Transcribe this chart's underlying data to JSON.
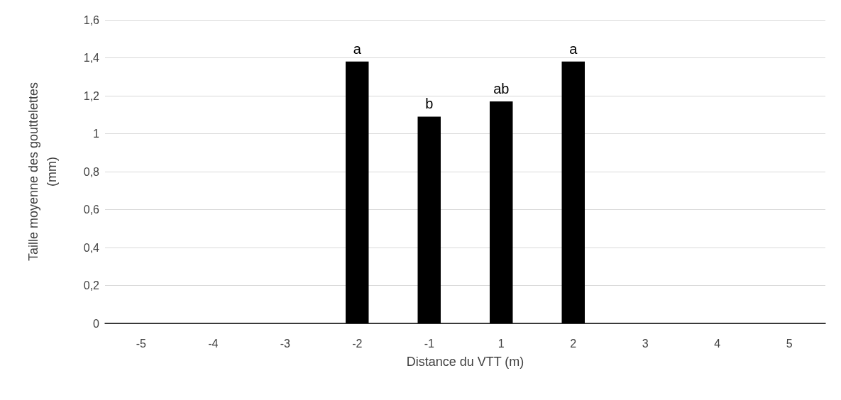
{
  "chart_data": {
    "type": "bar",
    "xlabel": "Distance du VTT (m)",
    "ylabel": "Taille moyenne des gouttelettes\n(mm)",
    "categories": [
      "-5",
      "-4",
      "-3",
      "-2",
      "-1",
      "1",
      "2",
      "3",
      "4",
      "5"
    ],
    "values": [
      null,
      null,
      null,
      1.38,
      1.09,
      1.17,
      1.38,
      null,
      null,
      null
    ],
    "color": "#000000",
    "ylim": [
      0,
      1.6
    ],
    "yticks": [
      0,
      {
        "value": 0.2,
        "label": "0,2"
      },
      {
        "value": 0.4,
        "label": "0,4"
      },
      {
        "value": 0.6,
        "label": "0,6"
      },
      {
        "value": 0.8,
        "label": "0,8"
      },
      1,
      {
        "value": 1.2,
        "label": "1,2"
      },
      {
        "value": 1.4,
        "label": "1,4"
      },
      {
        "value": 1.6,
        "label": "1,6"
      }
    ],
    "grid": "y",
    "annotations": [
      {
        "text": "a",
        "x": "-2",
        "y": 1.38
      },
      {
        "text": "b",
        "x": "-1",
        "y": 1.09
      },
      {
        "text": "ab",
        "x": "1",
        "y": 1.17
      },
      {
        "text": "a",
        "x": "2",
        "y": 1.38
      }
    ]
  }
}
